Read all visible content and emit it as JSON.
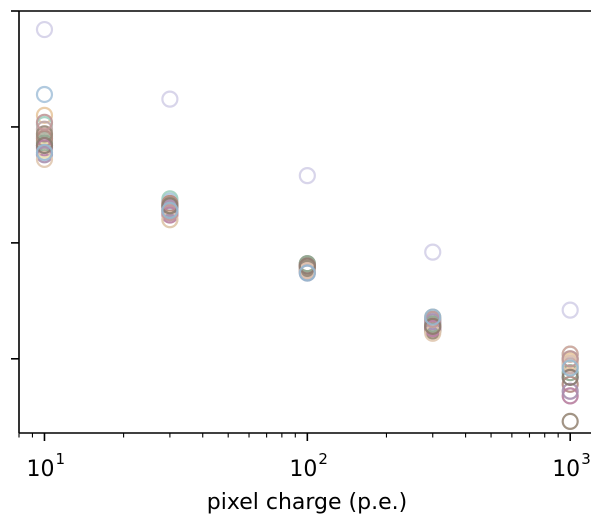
{
  "chart_data": {
    "type": "scatter",
    "title": "",
    "xlabel": "pixel charge (p.e.)",
    "ylabel": "",
    "x_scale": "log",
    "xlim": [
      8,
      1200
    ],
    "ylim": [
      0.09,
      1.0
    ],
    "grid": false,
    "legend": "none",
    "x_ticks": [
      {
        "base": "10",
        "exp": "1",
        "value": 10
      },
      {
        "base": "10",
        "exp": "2",
        "value": 100
      },
      {
        "base": "10",
        "exp": "3",
        "value": 1000
      }
    ],
    "y_ticks": [
      0.25,
      0.5,
      0.75,
      1.0
    ],
    "marker": "open-circle",
    "x": [
      10,
      30,
      100,
      300,
      1000
    ],
    "series": [
      {
        "color": "#d4d0e8",
        "values": [
          0.96,
          0.81,
          0.645,
          0.48,
          0.355
        ]
      },
      {
        "color": "#a8c4dc",
        "values": [
          0.82,
          0.59,
          0.44,
          0.33,
          0.21
        ]
      },
      {
        "color": "#e8c8a0",
        "values": [
          0.775,
          0.585,
          0.45,
          0.34,
          0.245
        ]
      },
      {
        "color": "#a0d0c0",
        "values": [
          0.755,
          0.595,
          0.455,
          0.335,
          0.26
        ]
      },
      {
        "color": "#c0a8a8",
        "values": [
          0.745,
          0.58,
          0.455,
          0.325,
          0.235
        ]
      },
      {
        "color": "#d4a8a0",
        "values": [
          0.73,
          0.575,
          0.45,
          0.32,
          0.26
        ]
      },
      {
        "color": "#b0b0a0",
        "values": [
          0.72,
          0.57,
          0.445,
          0.315,
          0.25
        ]
      },
      {
        "color": "#c8a8c0",
        "values": [
          0.71,
          0.565,
          0.44,
          0.315,
          0.24
        ]
      },
      {
        "color": "#e8e0b0",
        "values": [
          0.7,
          0.55,
          0.44,
          0.31,
          0.23
        ]
      },
      {
        "color": "#90a890",
        "values": [
          0.715,
          0.58,
          0.455,
          0.325,
          0.22
        ]
      },
      {
        "color": "#b08880",
        "values": [
          0.725,
          0.585,
          0.45,
          0.32,
          0.195
        ]
      },
      {
        "color": "#988878",
        "values": [
          0.735,
          0.57,
          0.445,
          0.31,
          0.115
        ]
      },
      {
        "color": "#b880a0",
        "values": [
          0.705,
          0.56,
          0.44,
          0.315,
          0.17
        ]
      },
      {
        "color": "#a890b0",
        "values": [
          0.69,
          0.575,
          0.435,
          0.33,
          0.18
        ]
      },
      {
        "color": "#e0c8b0",
        "values": [
          0.68,
          0.55,
          0.44,
          0.305,
          0.24
        ]
      },
      {
        "color": "#c09898",
        "values": [
          0.76,
          0.565,
          0.45,
          0.335,
          0.25
        ]
      },
      {
        "color": "#8c7c70",
        "values": [
          0.71,
          0.58,
          0.45,
          0.32,
          0.21
        ]
      },
      {
        "color": "#98b8d0",
        "values": [
          0.695,
          0.57,
          0.435,
          0.34,
          0.23
        ]
      }
    ]
  }
}
